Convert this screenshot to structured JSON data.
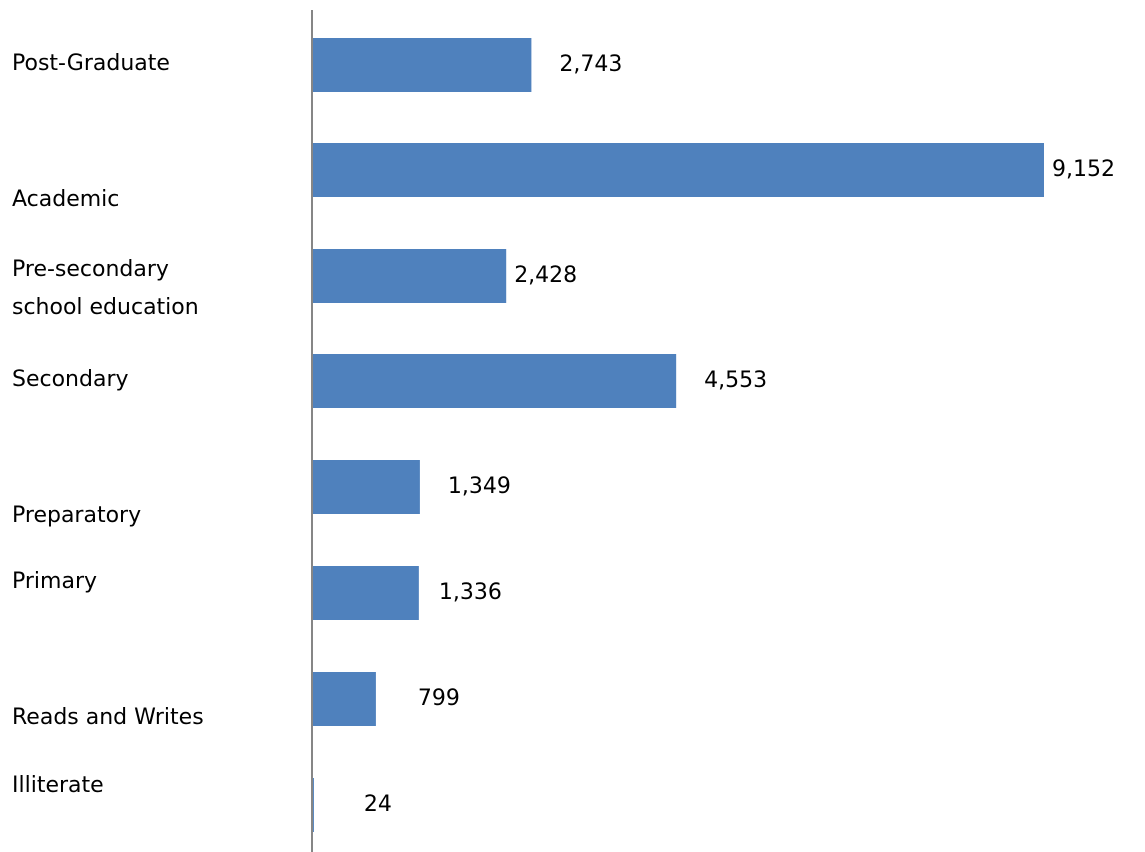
{
  "chart_data": {
    "type": "bar",
    "orientation": "horizontal",
    "title": "",
    "xlabel": "",
    "ylabel": "",
    "categories": [
      [
        "Post-Graduate"
      ],
      [
        "Academic"
      ],
      [
        "Pre-secondary",
        "school education"
      ],
      [
        "Secondary"
      ],
      [
        "Preparatory"
      ],
      [
        "Primary"
      ],
      [
        "Reads and Writes"
      ],
      [
        "Illiterate"
      ]
    ],
    "values": [
      2743,
      9152,
      2428,
      4553,
      1349,
      1336,
      799,
      24
    ],
    "value_labels": [
      "2,743",
      "9,152",
      "2,428",
      "4,553",
      "1,349",
      "1,336",
      "799",
      "24"
    ],
    "xlim": [
      0,
      9152
    ],
    "grid": false,
    "legend": "none",
    "bar_color": "#4F81BD",
    "axis_color": "#868686"
  }
}
